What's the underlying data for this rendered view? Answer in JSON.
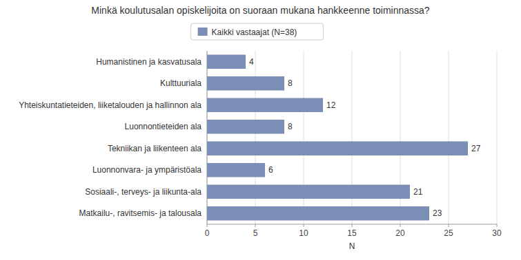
{
  "chart_data": {
    "type": "bar",
    "orientation": "horizontal",
    "title": "Minkä koulutusalan opiskelijoita on suoraan mukana hankkeenne toiminnassa?",
    "categories": [
      "Humanistinen ja kasvatusala",
      "Kulttuuriala",
      "Yhteiskuntatieteiden, liiketalouden ja hallinnon ala",
      "Luonnontieteiden ala",
      "Tekniikan ja liikenteen ala",
      "Luonnonvara- ja ympäristöala",
      "Sosiaali-, terveys- ja liikunta-ala",
      "Matkailu-, ravitsemis- ja talousala"
    ],
    "series": [
      {
        "name": "Kaikki vastaajat (N=38)",
        "color": "#7b8eb5",
        "values": [
          4,
          8,
          12,
          8,
          27,
          6,
          21,
          23
        ]
      }
    ],
    "xlabel": "N",
    "xlim": [
      0,
      30
    ],
    "xticks": [
      0,
      5,
      10,
      15,
      20,
      25,
      30
    ],
    "grid": true,
    "legend": "top",
    "data_labels": true
  }
}
